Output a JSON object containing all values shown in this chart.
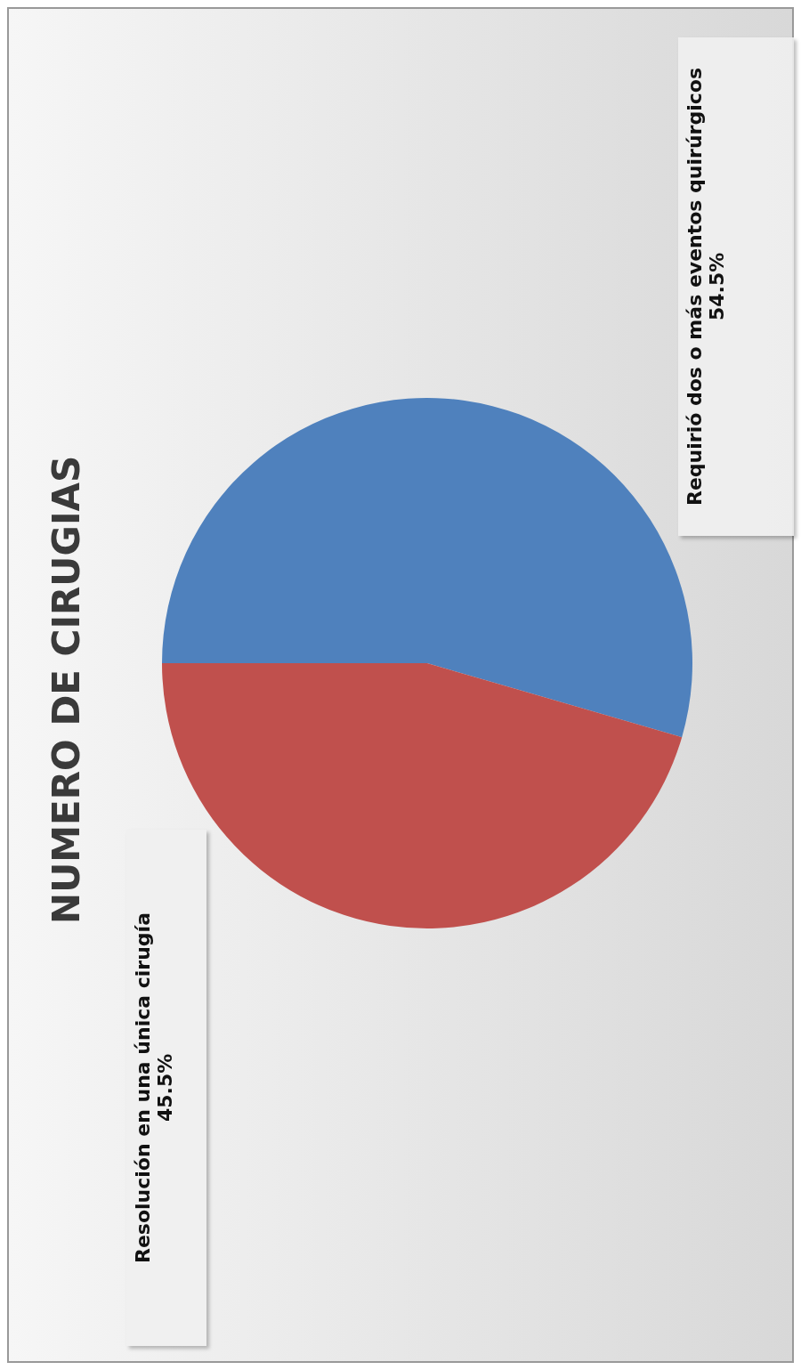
{
  "chart_data": {
    "type": "pie",
    "title": "NUMERO DE CIRUGIAS",
    "categories": [
      "Requirió dos o más eventos quirúrgicos",
      "Resolución en una única cirugía"
    ],
    "values": [
      54.5,
      45.5
    ],
    "colors": [
      "#4f81bd",
      "#c0504d"
    ],
    "value_labels": [
      "54.5%",
      "45.5%"
    ]
  }
}
